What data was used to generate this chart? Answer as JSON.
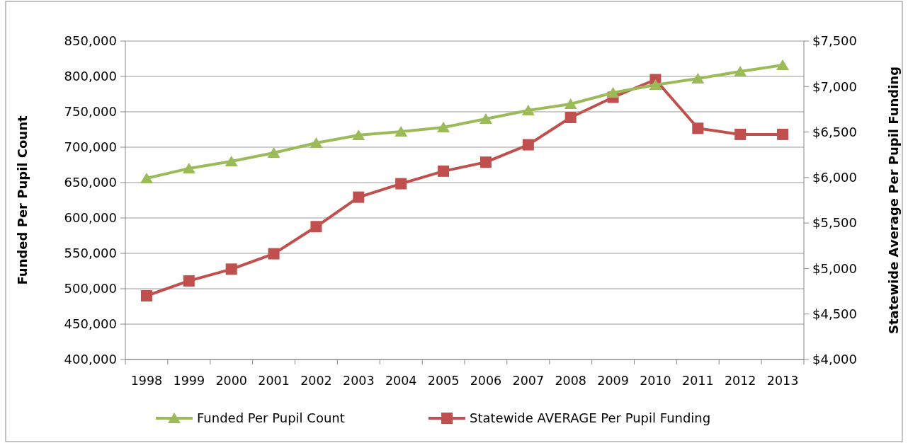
{
  "chart_data": {
    "type": "line",
    "categories": [
      "1998",
      "1999",
      "2000",
      "2001",
      "2002",
      "2003",
      "2004",
      "2005",
      "2006",
      "2007",
      "2008",
      "2009",
      "2010",
      "2011",
      "2012",
      "2013"
    ],
    "ylabel": "Funded Per Pupil Count",
    "y2label": "Statewide Average Per Pupil Funding",
    "ylim": [
      400000,
      850000
    ],
    "yticks": [
      {
        "value": 400000,
        "label": "400,000"
      },
      {
        "value": 450000,
        "label": "450,000"
      },
      {
        "value": 500000,
        "label": "500,000"
      },
      {
        "value": 550000,
        "label": "550,000"
      },
      {
        "value": 600000,
        "label": "600,000"
      },
      {
        "value": 650000,
        "label": "650,000"
      },
      {
        "value": 700000,
        "label": "700,000"
      },
      {
        "value": 750000,
        "label": "750,000"
      },
      {
        "value": 800000,
        "label": "800,000"
      },
      {
        "value": 850000,
        "label": "850,000"
      }
    ],
    "y2lim": [
      4000,
      7500
    ],
    "y2ticks": [
      {
        "value": 4000,
        "label": "$4,000"
      },
      {
        "value": 4500,
        "label": "$4,500"
      },
      {
        "value": 5000,
        "label": "$5,000"
      },
      {
        "value": 5500,
        "label": "$5,500"
      },
      {
        "value": 6000,
        "label": "$6,000"
      },
      {
        "value": 6500,
        "label": "$6,500"
      },
      {
        "value": 7000,
        "label": "$7,000"
      },
      {
        "value": 7500,
        "label": "$7,500"
      }
    ],
    "grid": "y",
    "legend": "bottom",
    "series": [
      {
        "name": "Funded Per Pupil Count",
        "color": "#9bbb59",
        "marker": "triangle",
        "values": [
          656000,
          670000,
          680000,
          692000,
          706000,
          717000,
          722000,
          728000,
          740000,
          752000,
          761000,
          777000,
          788000,
          797000,
          807000,
          816000
        ]
      },
      {
        "name": "Statewide AVERAGE Per Pupil Funding",
        "color": "#c0504d",
        "marker": "square",
        "axis": "y2",
        "values": [
          4700,
          4864,
          4993,
          5162,
          5460,
          5784,
          5932,
          6070,
          6169,
          6360,
          6660,
          6882,
          7076,
          6541,
          6474,
          6474
        ]
      }
    ]
  }
}
